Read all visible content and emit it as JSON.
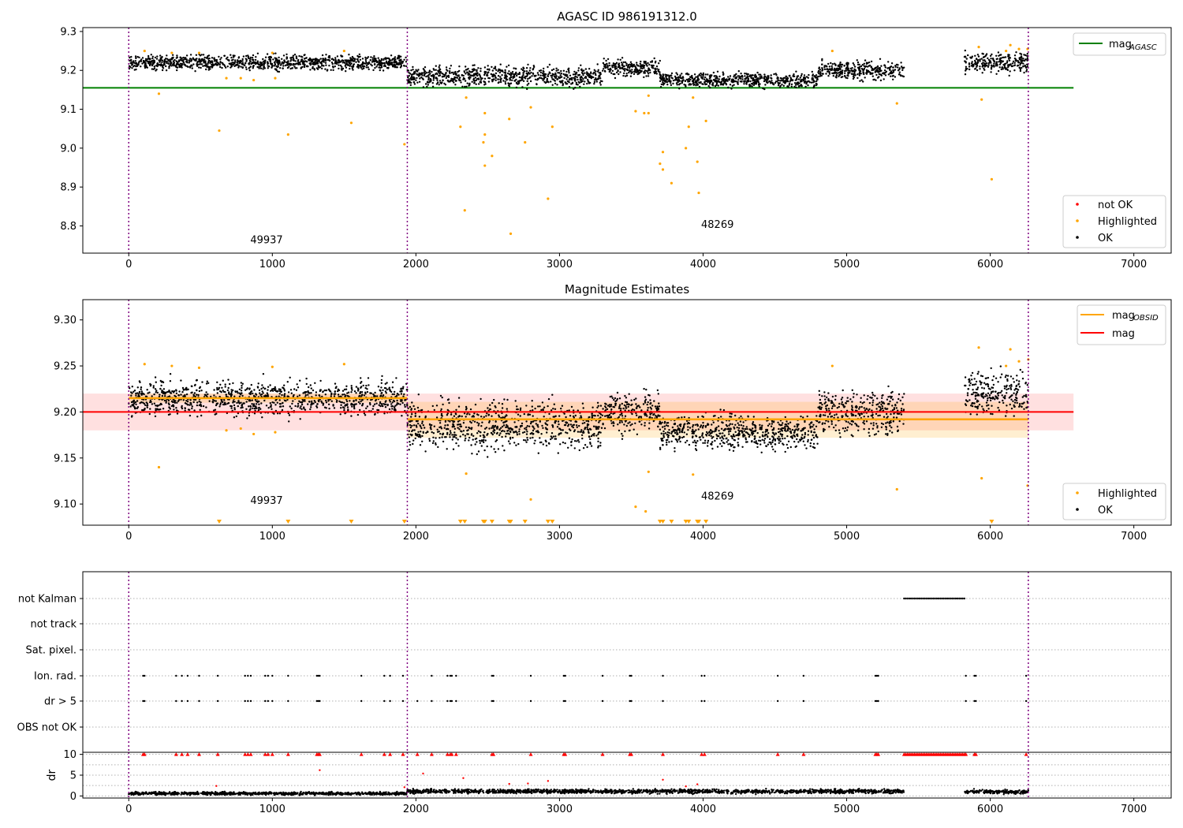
{
  "chart_data": [
    {
      "type": "scatter",
      "title": "AGASC ID 986191312.0",
      "xlim": [
        -320,
        7260
      ],
      "ylim": [
        8.73,
        9.31
      ],
      "xticks": [
        0,
        1000,
        2000,
        3000,
        4000,
        5000,
        6000,
        7000
      ],
      "xtick_labels": [
        "0",
        "1000",
        "2000",
        "3000",
        "4000",
        "5000",
        "6000",
        "7000"
      ],
      "yticks": [
        8.8,
        8.9,
        9.0,
        9.1,
        9.2,
        9.3
      ],
      "ytick_labels": [
        "8.8",
        "8.9",
        "9.0",
        "9.1",
        "9.2",
        "9.3"
      ],
      "grid": false,
      "vlines": [
        0,
        1940,
        6265
      ],
      "hlines": [
        {
          "name": "mag",
          "name_sub": "AGASC",
          "y": 9.155,
          "x": [
            -320,
            6580
          ],
          "color": "#008000"
        }
      ],
      "ok_segments": [
        {
          "x": [
            0,
            1940
          ],
          "center": 9.22,
          "spread": 0.013
        },
        {
          "x": [
            1940,
            3300
          ],
          "center": 9.185,
          "spread": 0.018
        },
        {
          "x": [
            3300,
            3700
          ],
          "center": 9.205,
          "spread": 0.015
        },
        {
          "x": [
            3700,
            4800
          ],
          "center": 9.175,
          "spread": 0.013
        },
        {
          "x": [
            4800,
            5400
          ],
          "center": 9.2,
          "spread": 0.016
        },
        {
          "x": [
            5820,
            6265
          ],
          "center": 9.22,
          "spread": 0.017
        }
      ],
      "highlighted": [
        [
          110,
          9.25
        ],
        [
          210,
          9.14
        ],
        [
          300,
          9.245
        ],
        [
          490,
          9.245
        ],
        [
          630,
          9.045
        ],
        [
          680,
          9.18
        ],
        [
          780,
          9.18
        ],
        [
          870,
          9.175
        ],
        [
          1000,
          9.245
        ],
        [
          1020,
          9.18
        ],
        [
          1110,
          9.035
        ],
        [
          1500,
          9.25
        ],
        [
          1550,
          9.065
        ],
        [
          1920,
          9.01
        ],
        [
          2310,
          9.055
        ],
        [
          2340,
          8.84
        ],
        [
          2350,
          9.13
        ],
        [
          2470,
          9.015
        ],
        [
          2480,
          9.09
        ],
        [
          2480,
          9.035
        ],
        [
          2480,
          8.955
        ],
        [
          2530,
          8.98
        ],
        [
          2650,
          9.075
        ],
        [
          2660,
          8.78
        ],
        [
          2760,
          9.015
        ],
        [
          2800,
          9.105
        ],
        [
          2920,
          8.87
        ],
        [
          2950,
          9.055
        ],
        [
          3530,
          9.095
        ],
        [
          3590,
          9.09
        ],
        [
          3620,
          9.135
        ],
        [
          3620,
          9.09
        ],
        [
          3700,
          8.96
        ],
        [
          3720,
          8.99
        ],
        [
          3720,
          8.945
        ],
        [
          3780,
          8.91
        ],
        [
          3880,
          9.0
        ],
        [
          3900,
          9.055
        ],
        [
          3930,
          9.13
        ],
        [
          3960,
          8.965
        ],
        [
          3970,
          8.885
        ],
        [
          4020,
          9.07
        ],
        [
          4900,
          9.25
        ],
        [
          5350,
          9.115
        ],
        [
          5920,
          9.26
        ],
        [
          5940,
          9.125
        ],
        [
          6010,
          8.92
        ],
        [
          6110,
          9.25
        ],
        [
          6140,
          9.265
        ],
        [
          6200,
          9.255
        ],
        [
          6260,
          9.255
        ]
      ],
      "text_annotations": [
        {
          "x": 960,
          "y": 8.755,
          "text": "49937"
        },
        {
          "x": 4100,
          "y": 8.795,
          "text": "48269"
        }
      ],
      "legend_upper": {
        "entries": [
          {
            "name": "mag",
            "sub": "AGASC",
            "color": "#008000"
          }
        ]
      },
      "legend_lower": {
        "entries": [
          {
            "name": "not OK",
            "color": "#ff0000"
          },
          {
            "name": "Highlighted",
            "color": "#ffa500"
          },
          {
            "name": "OK",
            "color": "#000000"
          }
        ]
      }
    },
    {
      "type": "scatter",
      "title": "Magnitude Estimates",
      "xlim": [
        -320,
        7260
      ],
      "ylim": [
        9.077,
        9.322
      ],
      "xticks": [
        0,
        1000,
        2000,
        3000,
        4000,
        5000,
        6000,
        7000
      ],
      "xtick_labels": [
        "0",
        "1000",
        "2000",
        "3000",
        "4000",
        "5000",
        "6000",
        "7000"
      ],
      "yticks": [
        9.1,
        9.15,
        9.2,
        9.25,
        9.3
      ],
      "ytick_labels": [
        "9.10",
        "9.15",
        "9.20",
        "9.25",
        "9.30"
      ],
      "grid": false,
      "vlines": [
        0,
        1940,
        6265
      ],
      "mag_line": {
        "name": "mag",
        "y": 9.2,
        "band": [
          9.18,
          9.22
        ],
        "x": [
          -320,
          6580
        ],
        "color": "#ff0000"
      },
      "mag_obsid": {
        "name": "mag",
        "sub": "OBSID",
        "color": "#ffa500",
        "segments": [
          {
            "x": [
              0,
              1940
            ],
            "y": 9.215,
            "band": [
              9.21,
              9.22
            ]
          },
          {
            "x": [
              1940,
              6265
            ],
            "y": 9.192,
            "band": [
              9.172,
              9.211
            ]
          }
        ]
      },
      "ok_segments": [
        {
          "x": [
            0,
            1940
          ],
          "center": 9.215,
          "spread": 0.013
        },
        {
          "x": [
            1940,
            3300
          ],
          "center": 9.185,
          "spread": 0.018
        },
        {
          "x": [
            3300,
            3700
          ],
          "center": 9.2,
          "spread": 0.015
        },
        {
          "x": [
            3700,
            4800
          ],
          "center": 9.178,
          "spread": 0.013
        },
        {
          "x": [
            4800,
            5400
          ],
          "center": 9.2,
          "spread": 0.016
        },
        {
          "x": [
            5820,
            6265
          ],
          "center": 9.22,
          "spread": 0.017
        }
      ],
      "highlighted": [
        [
          110,
          9.252
        ],
        [
          210,
          9.14
        ],
        [
          300,
          9.25
        ],
        [
          490,
          9.248
        ],
        [
          680,
          9.18
        ],
        [
          780,
          9.182
        ],
        [
          870,
          9.176
        ],
        [
          1000,
          9.249
        ],
        [
          1020,
          9.178
        ],
        [
          1500,
          9.252
        ],
        [
          2350,
          9.133
        ],
        [
          2800,
          9.105
        ],
        [
          3530,
          9.097
        ],
        [
          3600,
          9.092
        ],
        [
          3620,
          9.135
        ],
        [
          3930,
          9.132
        ],
        [
          4900,
          9.25
        ],
        [
          5350,
          9.116
        ],
        [
          5920,
          9.27
        ],
        [
          5940,
          9.128
        ],
        [
          6110,
          9.25
        ],
        [
          6140,
          9.268
        ],
        [
          6200,
          9.255
        ],
        [
          6260,
          9.12
        ],
        [
          6265,
          9.257
        ]
      ],
      "below_range_x": [
        630,
        1110,
        1550,
        1920,
        2310,
        2340,
        2470,
        2480,
        2530,
        2650,
        2660,
        2760,
        2920,
        2950,
        3700,
        3720,
        3780,
        3880,
        3900,
        3960,
        3970,
        4020,
        6010
      ],
      "text_annotations": [
        {
          "x": 960,
          "y": 9.1,
          "text": "49937"
        },
        {
          "x": 4100,
          "y": 9.105,
          "text": "48269"
        }
      ],
      "legend_upper": {
        "entries": [
          {
            "name": "mag",
            "sub": "OBSID",
            "color": "#ffa500"
          },
          {
            "name": "mag",
            "sub": "",
            "color": "#ff0000"
          }
        ]
      },
      "legend_lower": {
        "entries": [
          {
            "name": "Highlighted",
            "color": "#ffa500"
          },
          {
            "name": "OK",
            "color": "#000000"
          }
        ]
      }
    },
    {
      "type": "scatter",
      "title": "",
      "xlim": [
        -320,
        7260
      ],
      "categories": [
        "not Kalman",
        "not track",
        "Sat. pixel.",
        "Ion. rad.",
        "dr > 5",
        "OBS not OK"
      ],
      "grid": "horizontal dotted",
      "vlines": [
        0,
        1940,
        6265
      ],
      "flag_points": {
        "not Kalman": [
          [
            5400,
            5830
          ]
        ],
        "not track": [],
        "Sat. pixel.": [],
        "Ion. rad.": [
          100,
          110,
          330,
          370,
          410,
          490,
          620,
          810,
          830,
          850,
          950,
          970,
          1000,
          1110,
          1310,
          1320,
          1330,
          1620,
          1780,
          1820,
          1910,
          2110,
          2220,
          2240,
          2250,
          2280,
          2530,
          2540,
          2800,
          3030,
          3040,
          3300,
          3490,
          3500,
          3720,
          3990,
          4010,
          4520,
          4700,
          5200,
          5210,
          5220,
          5830,
          5890,
          5900,
          6250
        ],
        "dr > 5": [
          100,
          110,
          330,
          370,
          410,
          490,
          620,
          810,
          830,
          850,
          950,
          970,
          1000,
          1110,
          1310,
          1320,
          1330,
          1620,
          1780,
          1820,
          1910,
          2010,
          2110,
          2220,
          2240,
          2250,
          2280,
          2530,
          2540,
          2800,
          3030,
          3040,
          3300,
          3490,
          3500,
          3720,
          3990,
          4010,
          4520,
          4700,
          5200,
          5210,
          5220,
          5830,
          5890,
          5900,
          6250
        ],
        "OBS not OK": []
      }
    },
    {
      "type": "scatter",
      "title": "",
      "ylabel": "dr",
      "xlim": [
        -320,
        7260
      ],
      "ylim": [
        -0.5,
        10.5
      ],
      "xticks": [
        0,
        1000,
        2000,
        3000,
        4000,
        5000,
        6000,
        7000
      ],
      "xtick_labels": [
        "0",
        "1000",
        "2000",
        "3000",
        "4000",
        "5000",
        "6000",
        "7000"
      ],
      "yticks": [
        0,
        5,
        10
      ],
      "ytick_labels": [
        "0",
        "5",
        "10"
      ],
      "grid": "horizontal dotted",
      "vlines": [
        0,
        1940,
        6265
      ],
      "dr_segments": [
        {
          "x": [
            0,
            1940
          ],
          "center": 0.6,
          "spread": 0.25
        },
        {
          "x": [
            1940,
            5400
          ],
          "center": 1.1,
          "spread": 0.35
        },
        {
          "x": [
            5820,
            6265
          ],
          "center": 1.0,
          "spread": 0.35
        }
      ],
      "capped_x_extra": [
        [
          5400,
          5830
        ]
      ],
      "outliers": [
        [
          610,
          2.4
        ],
        [
          1330,
          6.2
        ],
        [
          1920,
          2.1
        ],
        [
          2050,
          5.4
        ],
        [
          2330,
          4.3
        ],
        [
          2650,
          2.9
        ],
        [
          2780,
          3.0
        ],
        [
          2920,
          3.6
        ],
        [
          3720,
          3.9
        ],
        [
          3880,
          2.3
        ],
        [
          3960,
          2.8
        ]
      ]
    }
  ]
}
